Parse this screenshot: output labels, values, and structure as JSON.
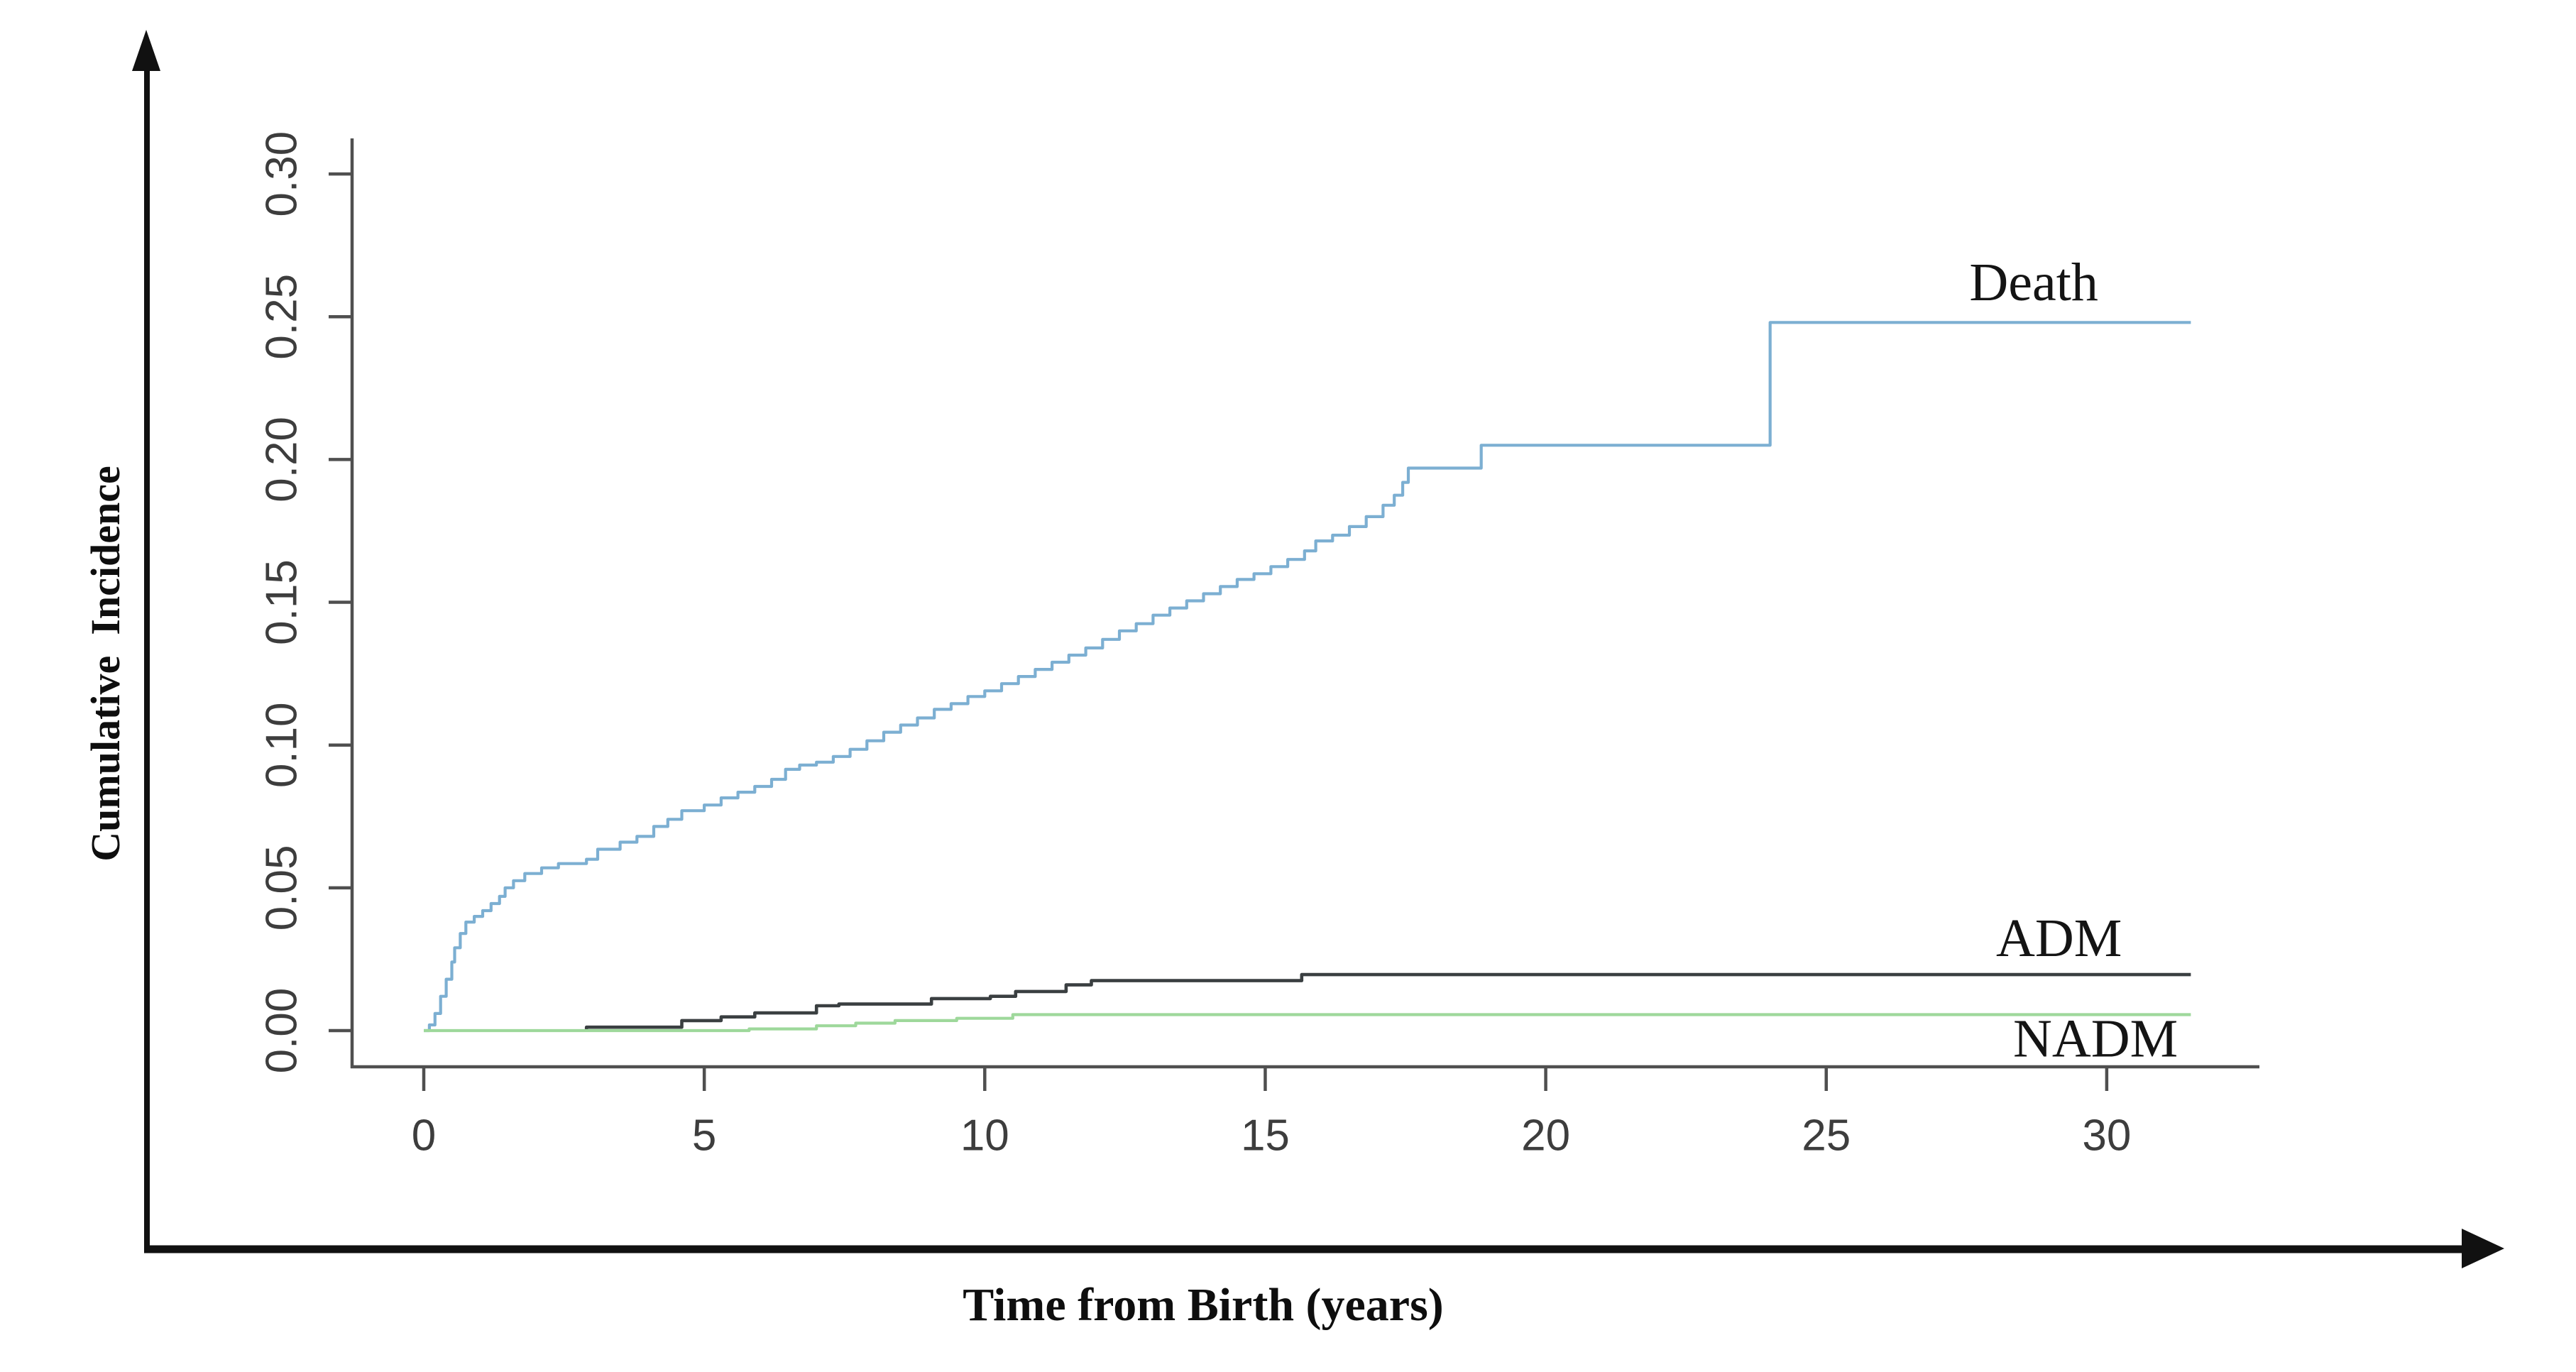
{
  "figure": {
    "background": "#ffffff",
    "y_axis_title": "Cumulative  Incidence",
    "x_axis_title": "Time from Birth (years)"
  },
  "decorations": {
    "outer_axes_color": "#111111",
    "inner_axis_color": "#4f4f4f",
    "tick_label_color": "#3d3d3d"
  },
  "chart_data": {
    "type": "line",
    "subtype": "step-cumulative-incidence",
    "title": "",
    "xlabel": "Time from Birth (years)",
    "ylabel": "Cumulative Incidence",
    "x_ticks": [
      0,
      5,
      10,
      15,
      20,
      25,
      30
    ],
    "y_tick_labels": [
      "0.00",
      "0.05",
      "0.10",
      "0.15",
      "0.20",
      "0.25",
      "0.30"
    ],
    "y_tick_values": [
      0.0,
      0.05,
      0.1,
      0.15,
      0.2,
      0.25,
      0.3
    ],
    "xlim": [
      -1.3,
      32.7
    ],
    "ylim": [
      -0.013,
      0.312
    ],
    "grid": false,
    "legend_position": "curve-end-labels",
    "series": [
      {
        "name": "Death",
        "color": "#7cafd2",
        "stroke_width": 4.2,
        "step": true,
        "start_y": 0.0,
        "end_x": 31.5,
        "label": {
          "text": "Death",
          "x": 28.7,
          "y": 0.262
        },
        "points": [
          [
            0,
            0
          ],
          [
            0.1,
            0.002
          ],
          [
            0.2,
            0.006
          ],
          [
            0.3,
            0.012
          ],
          [
            0.4,
            0.018
          ],
          [
            0.5,
            0.024
          ],
          [
            0.55,
            0.029
          ],
          [
            0.65,
            0.034
          ],
          [
            0.75,
            0.038
          ],
          [
            0.9,
            0.04
          ],
          [
            1.05,
            0.042
          ],
          [
            1.2,
            0.0445
          ],
          [
            1.35,
            0.047
          ],
          [
            1.45,
            0.05
          ],
          [
            1.6,
            0.0525
          ],
          [
            1.8,
            0.055
          ],
          [
            2.1,
            0.057
          ],
          [
            2.4,
            0.0585
          ],
          [
            2.9,
            0.06
          ],
          [
            3.1,
            0.0635
          ],
          [
            3.5,
            0.066
          ],
          [
            3.8,
            0.068
          ],
          [
            4.1,
            0.0715
          ],
          [
            4.35,
            0.074
          ],
          [
            4.6,
            0.077
          ],
          [
            5.0,
            0.079
          ],
          [
            5.3,
            0.0815
          ],
          [
            5.6,
            0.0835
          ],
          [
            5.9,
            0.0855
          ],
          [
            6.2,
            0.088
          ],
          [
            6.45,
            0.0915
          ],
          [
            6.7,
            0.093
          ],
          [
            7.0,
            0.094
          ],
          [
            7.3,
            0.096
          ],
          [
            7.6,
            0.0985
          ],
          [
            7.9,
            0.1015
          ],
          [
            8.2,
            0.1045
          ],
          [
            8.5,
            0.107
          ],
          [
            8.8,
            0.1095
          ],
          [
            9.1,
            0.1125
          ],
          [
            9.4,
            0.1145
          ],
          [
            9.7,
            0.117
          ],
          [
            10.0,
            0.119
          ],
          [
            10.3,
            0.1215
          ],
          [
            10.6,
            0.124
          ],
          [
            10.9,
            0.1265
          ],
          [
            11.2,
            0.129
          ],
          [
            11.5,
            0.1315
          ],
          [
            11.8,
            0.134
          ],
          [
            12.1,
            0.137
          ],
          [
            12.4,
            0.14
          ],
          [
            12.7,
            0.1425
          ],
          [
            13.0,
            0.1455
          ],
          [
            13.3,
            0.148
          ],
          [
            13.6,
            0.1505
          ],
          [
            13.9,
            0.153
          ],
          [
            14.2,
            0.1555
          ],
          [
            14.5,
            0.158
          ],
          [
            14.8,
            0.16
          ],
          [
            15.1,
            0.1625
          ],
          [
            15.4,
            0.165
          ],
          [
            15.7,
            0.168
          ],
          [
            15.9,
            0.1715
          ],
          [
            16.2,
            0.1735
          ],
          [
            16.5,
            0.1765
          ],
          [
            16.8,
            0.18
          ],
          [
            17.1,
            0.184
          ],
          [
            17.3,
            0.1875
          ],
          [
            17.45,
            0.192
          ],
          [
            17.55,
            0.197
          ],
          [
            18.85,
            0.205
          ],
          [
            24.0,
            0.248
          ]
        ]
      },
      {
        "name": "ADM",
        "color": "#3a3f41",
        "stroke_width": 4.6,
        "step": true,
        "start_y": 0.0002,
        "end_x": 31.5,
        "label": {
          "text": "ADM",
          "x": 29.15,
          "y": 0.0323
        },
        "points": [
          [
            2.9,
            0.0012
          ],
          [
            4.6,
            0.0035
          ],
          [
            5.3,
            0.0048
          ],
          [
            5.9,
            0.0062
          ],
          [
            7.0,
            0.0087
          ],
          [
            7.4,
            0.0093
          ],
          [
            9.05,
            0.0112
          ],
          [
            10.1,
            0.012
          ],
          [
            10.55,
            0.0137
          ],
          [
            11.45,
            0.016
          ],
          [
            11.9,
            0.0175
          ],
          [
            15.65,
            0.0196
          ]
        ]
      },
      {
        "name": "NADM",
        "color": "#9ed89b",
        "stroke_width": 4.2,
        "step": true,
        "start_y": 0.0,
        "end_x": 31.5,
        "label": {
          "text": "NADM",
          "x": 29.8,
          "y": -0.0028
        },
        "points": [
          [
            0,
            0
          ],
          [
            5.8,
            0.0006
          ],
          [
            7.0,
            0.0017
          ],
          [
            7.7,
            0.0026
          ],
          [
            8.4,
            0.0035
          ],
          [
            9.5,
            0.0043
          ],
          [
            10.5,
            0.0056
          ]
        ]
      }
    ]
  }
}
